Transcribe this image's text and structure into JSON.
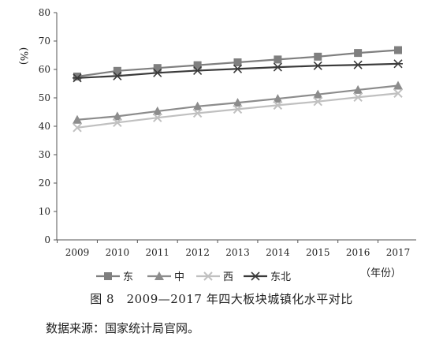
{
  "chart_data": {
    "type": "line",
    "ylabel": "(%)",
    "xlabel": "（年份）",
    "ylim": [
      0,
      80
    ],
    "yticks": [
      0,
      10,
      20,
      30,
      40,
      50,
      60,
      70,
      80
    ],
    "categories": [
      "2009",
      "2010",
      "2011",
      "2012",
      "2013",
      "2014",
      "2015",
      "2016",
      "2017"
    ],
    "grid": false,
    "legend_position": "bottom",
    "series": [
      {
        "name": "东",
        "color": "#7f7f7f",
        "marker": "square",
        "values": [
          57.5,
          59.5,
          60.5,
          61.5,
          62.5,
          63.5,
          64.5,
          65.8,
          66.8
        ]
      },
      {
        "name": "中",
        "color": "#8c8c8c",
        "marker": "triangle",
        "values": [
          42.3,
          43.5,
          45.3,
          47.0,
          48.3,
          49.7,
          51.2,
          52.8,
          54.3
        ]
      },
      {
        "name": "西",
        "color": "#c0c0c0",
        "marker": "x",
        "values": [
          39.5,
          41.3,
          43.0,
          44.6,
          46.0,
          47.4,
          48.7,
          50.2,
          51.6
        ]
      },
      {
        "name": "东北",
        "color": "#3a3a3a",
        "marker": "star",
        "values": [
          57.0,
          57.7,
          58.8,
          59.6,
          60.2,
          60.8,
          61.3,
          61.6,
          62.0
        ]
      }
    ]
  },
  "caption": {
    "title": "图 8　2009—2017 年四大板块城镇化水平对比",
    "source": "数据来源：国家统计局官网。"
  }
}
